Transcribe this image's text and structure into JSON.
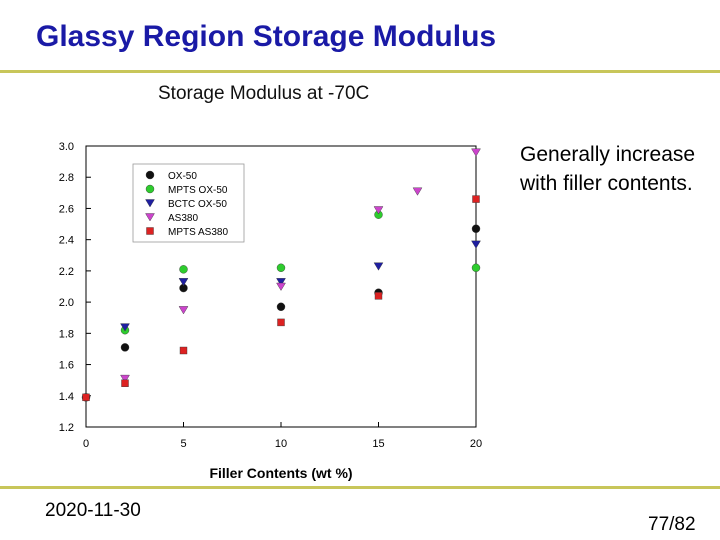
{
  "slide": {
    "title": "Glassy Region Storage Modulus",
    "note": "Generally increase with filler contents.",
    "date": "2020-11-30",
    "page": "77/82"
  },
  "colors": {
    "title": "#1a1aa6",
    "rule": "#c8c65a"
  },
  "chart_data": {
    "type": "scatter",
    "title": "Storage Modulus at -70C",
    "xlabel": "Filler Contents (wt %)",
    "ylabel": "",
    "xlim": [
      0,
      20
    ],
    "ylim": [
      1.2,
      3.0
    ],
    "xticks": [
      0,
      5,
      10,
      15,
      20
    ],
    "yticks": [
      1.2,
      1.4,
      1.6,
      1.8,
      2.0,
      2.2,
      2.4,
      2.6,
      2.8,
      3.0
    ],
    "grid": false,
    "legend_position": "top-left",
    "series": [
      {
        "name": "OX-50",
        "marker": "circle",
        "color": "#111111",
        "x": [
          0,
          2,
          5,
          10,
          15,
          20
        ],
        "y": [
          1.39,
          1.71,
          2.09,
          1.97,
          2.06,
          2.47
        ]
      },
      {
        "name": "MPTS OX-50",
        "marker": "circle",
        "color": "#2ecc2e",
        "x": [
          2,
          5,
          10,
          15,
          20
        ],
        "y": [
          1.82,
          2.21,
          2.22,
          2.56,
          2.22
        ]
      },
      {
        "name": "BCTC OX-50",
        "marker": "triangle-down",
        "color": "#1f1fa0",
        "x": [
          2,
          5,
          10,
          15,
          20
        ],
        "y": [
          1.84,
          2.13,
          2.13,
          2.23,
          2.37
        ]
      },
      {
        "name": "AS380",
        "marker": "triangle-down",
        "color": "#cc44cc",
        "x": [
          2,
          5,
          10,
          15,
          17,
          20
        ],
        "y": [
          1.51,
          1.95,
          2.1,
          2.59,
          2.71,
          2.96
        ]
      },
      {
        "name": "MPTS AS380",
        "marker": "square",
        "color": "#dd2222",
        "x": [
          0,
          2,
          5,
          10,
          15,
          20
        ],
        "y": [
          1.39,
          1.48,
          1.69,
          1.87,
          2.04,
          2.66
        ]
      }
    ]
  }
}
